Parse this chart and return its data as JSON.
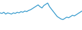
{
  "values": [
    28,
    27,
    29,
    26,
    28,
    27,
    26,
    28,
    27,
    29,
    28,
    30,
    29,
    31,
    30,
    32,
    33,
    35,
    37,
    39,
    41,
    38,
    36,
    40,
    42,
    44,
    38,
    34,
    30,
    26,
    22,
    20,
    18,
    17,
    19,
    21,
    20,
    22,
    24,
    23,
    25,
    27,
    29,
    31
  ],
  "line_color": "#3399cc",
  "background_color": "#ffffff",
  "linewidth": 0.9
}
